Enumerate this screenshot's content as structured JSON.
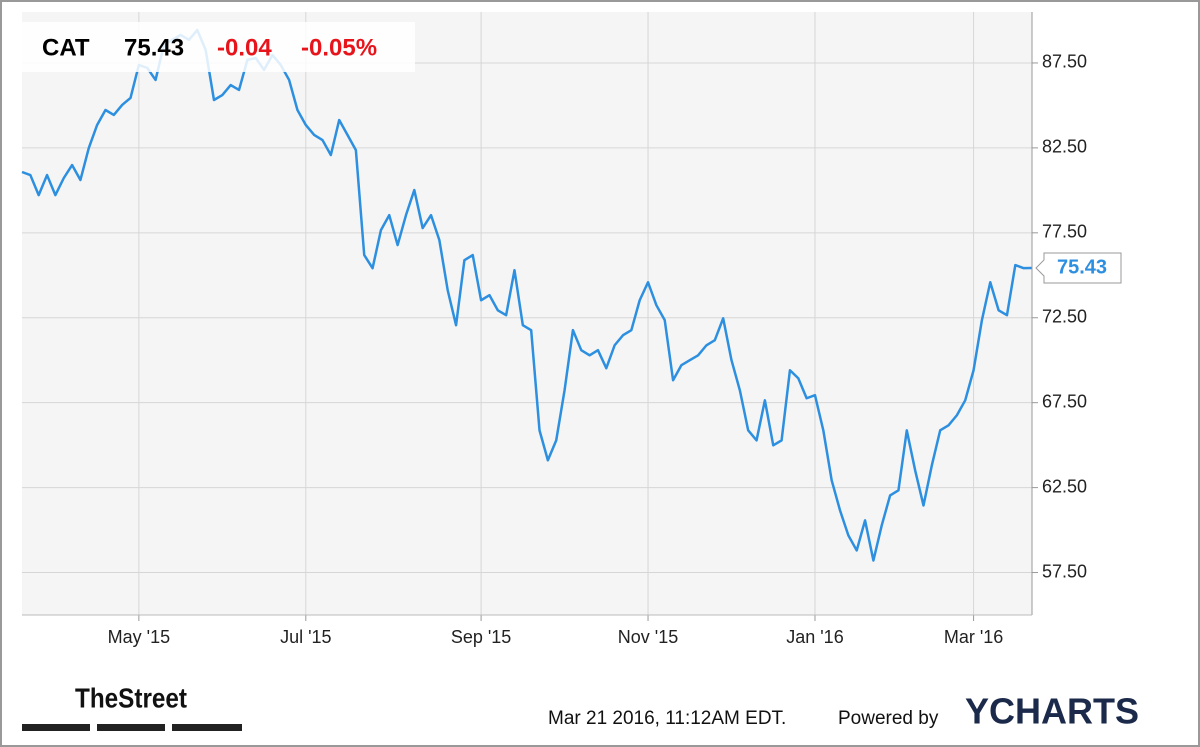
{
  "chart_data": {
    "type": "line",
    "ticker": "CAT",
    "price": "75.43",
    "change": "-0.04",
    "change_pct": "-0.05%",
    "series": [
      {
        "name": "CAT",
        "color": "#2d8fe0",
        "values": [
          81.08,
          80.9,
          79.72,
          80.9,
          79.72,
          80.72,
          81.49,
          80.61,
          82.49,
          83.85,
          84.73,
          84.44,
          85.03,
          85.44,
          87.38,
          87.21,
          86.5,
          88.56,
          88.86,
          89.15,
          88.86,
          89.44,
          88.27,
          85.32,
          85.61,
          86.2,
          85.91,
          87.68,
          87.79,
          87.09,
          87.97,
          87.38,
          86.5,
          84.73,
          83.85,
          83.26,
          82.96,
          82.08,
          84.14,
          83.26,
          82.37,
          76.19,
          75.42,
          77.66,
          78.54,
          76.78,
          78.54,
          80.02,
          77.78,
          78.54,
          77.07,
          74.12,
          72.06,
          75.89,
          76.19,
          73.53,
          73.83,
          72.94,
          72.65,
          75.3,
          72.06,
          71.77,
          65.87,
          64.11,
          65.28,
          68.23,
          71.77,
          70.59,
          70.29,
          70.59,
          69.53,
          70.88,
          71.47,
          71.77,
          73.53,
          74.59,
          73.24,
          72.36,
          68.82,
          69.71,
          70.0,
          70.29,
          70.88,
          71.18,
          72.47,
          70.0,
          68.23,
          65.87,
          65.28,
          67.64,
          64.99,
          65.28,
          69.41,
          68.94,
          67.76,
          67.94,
          65.87,
          62.93,
          61.16,
          59.69,
          58.8,
          60.57,
          58.21,
          60.28,
          62.04,
          62.34,
          65.87,
          63.52,
          61.45,
          63.81,
          65.87,
          66.17,
          66.76,
          67.64,
          69.41,
          72.36,
          74.59,
          72.94,
          72.65,
          75.6,
          75.42,
          75.43
        ]
      }
    ],
    "xlim": [
      0,
      121
    ],
    "xticks": [
      {
        "value": 14,
        "label": "May '15"
      },
      {
        "value": 34,
        "label": "Jul '15"
      },
      {
        "value": 55,
        "label": "Sep '15"
      },
      {
        "value": 75,
        "label": "Nov '15"
      },
      {
        "value": 95,
        "label": "Jan '16"
      },
      {
        "value": 114,
        "label": "Mar '16"
      }
    ],
    "ylim": [
      55,
      90.5
    ],
    "yticks": [
      {
        "value": 57.5,
        "label": "57.50"
      },
      {
        "value": 62.5,
        "label": "62.50"
      },
      {
        "value": 67.5,
        "label": "67.50"
      },
      {
        "value": 72.5,
        "label": "72.50"
      },
      {
        "value": 77.5,
        "label": "77.50"
      },
      {
        "value": 82.5,
        "label": "82.50"
      },
      {
        "value": 87.5,
        "label": "87.50"
      }
    ],
    "grid": true,
    "source_logo": "TheStreet",
    "timestamp": "Mar 21 2016, 11:12AM EDT.",
    "powered_by": "Powered by",
    "brand": "YCHARTS"
  }
}
